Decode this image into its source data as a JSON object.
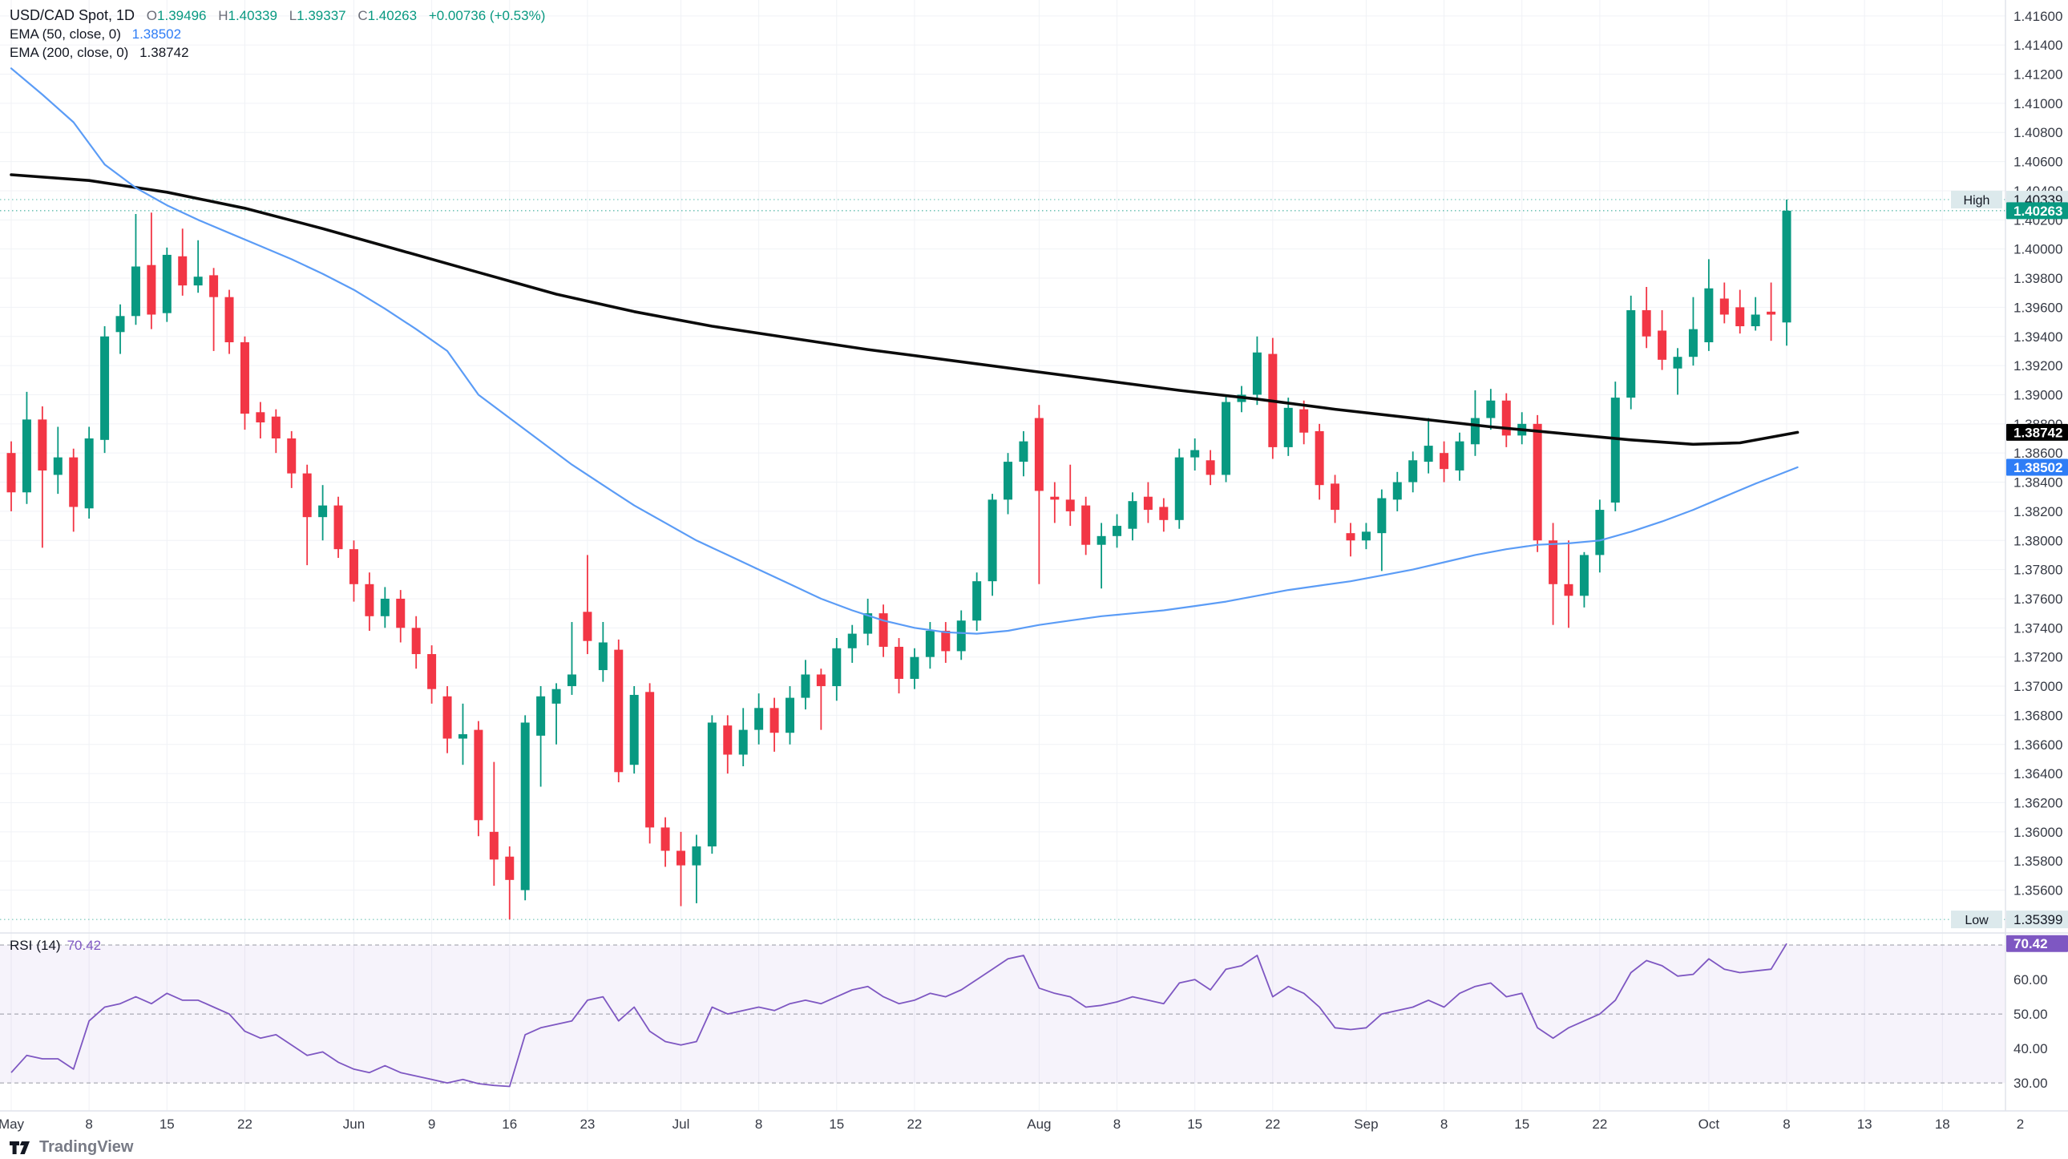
{
  "legend": {
    "symbol": "USD/CAD Spot, 1D",
    "o_label": "O",
    "o": "1.39496",
    "h_label": "H",
    "h": "1.40339",
    "l_label": "L",
    "l": "1.39337",
    "c_label": "C",
    "c": "1.40263",
    "change": "+0.00736 (+0.53%)",
    "ema50_label": "EMA (50, close, 0)",
    "ema50_value": "1.38502",
    "ema200_label": "EMA (200, close, 0)",
    "ema200_value": "1.38742"
  },
  "rsi_legend": {
    "label": "RSI",
    "params": "(14)",
    "value": "70.42"
  },
  "watermark": {
    "text": "TradingView"
  },
  "markers": {
    "high_label": "High",
    "high": "1.40339",
    "low_label": "Low",
    "low": "1.35399",
    "close": "1.40263",
    "ema50": "1.38502",
    "ema200": "1.38742",
    "rsi": "70.42"
  },
  "colors": {
    "up": "#089981",
    "down": "#f23645",
    "ema50_line": "#5b9cf6",
    "ema50_badge": "#2e7df6",
    "ema200_line": "#0b0b0b",
    "ema200_badge": "#000000",
    "rsi_line": "#7e57c2",
    "rsi_badge": "#7e57c2",
    "grid": "#f0f2f6",
    "axis_text": "#363a45",
    "separator": "#e0e3eb",
    "marker_bg": "#dce9ec",
    "dashed_level": "#787b86",
    "band_fill": "rgba(126,87,194,0.07)"
  },
  "chart_data": {
    "type": "candlestick",
    "title": "USD/CAD Spot, 1D — with EMA(50), EMA(200) and RSI(14)",
    "symbol": "USD/CAD Spot",
    "interval": "1D",
    "legend_ohlc": {
      "open": 1.39496,
      "high": 1.40339,
      "low": 1.39337,
      "close": 1.40263,
      "change": 0.00736,
      "change_pct": 0.53
    },
    "price_axis": {
      "min_label": 1.356,
      "max_label": 1.416,
      "step": 0.002,
      "ylim": [
        1.35317,
        1.41709
      ]
    },
    "rsi_axis": {
      "ticks": [
        60,
        50,
        40,
        30
      ],
      "dashed_levels": [
        70,
        50,
        30
      ],
      "ylim": [
        21.9,
        72.8
      ]
    },
    "high_marker": 1.40339,
    "low_marker": 1.35399,
    "last_close": 1.40263,
    "rsi_last": 70.42,
    "ema50_last": 1.38502,
    "ema200_last": 1.38742,
    "grid": true,
    "legend_position": "top-left",
    "dates": [
      "May 1",
      "May 2",
      "May 5",
      "May 6",
      "May 7",
      "May 8",
      "May 9",
      "May 12",
      "May 13",
      "May 14",
      "May 15",
      "May 16",
      "May 19",
      "May 20",
      "May 21",
      "May 22",
      "May 23",
      "May 26",
      "May 27",
      "May 28",
      "May 29",
      "May 30",
      "Jun 2",
      "Jun 3",
      "Jun 4",
      "Jun 5",
      "Jun 6",
      "Jun 9",
      "Jun 10",
      "Jun 11",
      "Jun 12",
      "Jun 13",
      "Jun 16",
      "Jun 17",
      "Jun 18",
      "Jun 19",
      "Jun 20",
      "Jun 23",
      "Jun 24",
      "Jun 25",
      "Jun 26",
      "Jun 27",
      "Jun 30",
      "Jul 1",
      "Jul 2",
      "Jul 3",
      "Jul 4",
      "Jul 7",
      "Jul 8",
      "Jul 9",
      "Jul 10",
      "Jul 11",
      "Jul 14",
      "Jul 15",
      "Jul 16",
      "Jul 17",
      "Jul 18",
      "Jul 21",
      "Jul 22",
      "Jul 23",
      "Jul 24",
      "Jul 25",
      "Jul 28",
      "Jul 29",
      "Jul 30",
      "Jul 31",
      "Aug 1",
      "Aug 4",
      "Aug 5",
      "Aug 6",
      "Aug 7",
      "Aug 8",
      "Aug 11",
      "Aug 12",
      "Aug 13",
      "Aug 14",
      "Aug 15",
      "Aug 18",
      "Aug 19",
      "Aug 20",
      "Aug 21",
      "Aug 22",
      "Aug 25",
      "Aug 26",
      "Aug 27",
      "Aug 28",
      "Aug 29",
      "Sep 1",
      "Sep 2",
      "Sep 3",
      "Sep 4",
      "Sep 5",
      "Sep 8",
      "Sep 9",
      "Sep 10",
      "Sep 11",
      "Sep 12",
      "Sep 15",
      "Sep 16",
      "Sep 17",
      "Sep 18",
      "Sep 19",
      "Sep 22",
      "Sep 23",
      "Sep 24",
      "Sep 25",
      "Sep 26",
      "Sep 29",
      "Sep 30",
      "Oct 1",
      "Oct 2",
      "Oct 3",
      "Oct 6",
      "Oct 7",
      "Oct 8"
    ],
    "ohlc": [
      [
        1.386,
        1.3868,
        1.382,
        1.3833
      ],
      [
        1.3833,
        1.3902,
        1.3825,
        1.3883
      ],
      [
        1.3883,
        1.3892,
        1.3795,
        1.3848
      ],
      [
        1.3845,
        1.3878,
        1.3832,
        1.3857
      ],
      [
        1.3857,
        1.3863,
        1.3806,
        1.3823
      ],
      [
        1.3822,
        1.3878,
        1.3815,
        1.387
      ],
      [
        1.3869,
        1.3947,
        1.386,
        1.394
      ],
      [
        1.3943,
        1.3962,
        1.3928,
        1.3954
      ],
      [
        1.3954,
        1.4024,
        1.3948,
        1.3988
      ],
      [
        1.3989,
        1.4025,
        1.3945,
        1.3955
      ],
      [
        1.3956,
        1.4001,
        1.395,
        1.3996
      ],
      [
        1.3995,
        1.4014,
        1.3968,
        1.3975
      ],
      [
        1.3975,
        1.4006,
        1.397,
        1.3981
      ],
      [
        1.3982,
        1.3987,
        1.393,
        1.3967
      ],
      [
        1.3967,
        1.3972,
        1.3928,
        1.3936
      ],
      [
        1.3936,
        1.394,
        1.3876,
        1.3887
      ],
      [
        1.3888,
        1.3895,
        1.387,
        1.3881
      ],
      [
        1.3885,
        1.389,
        1.386,
        1.387
      ],
      [
        1.387,
        1.3875,
        1.3836,
        1.3846
      ],
      [
        1.3846,
        1.3852,
        1.3783,
        1.3816
      ],
      [
        1.3816,
        1.3838,
        1.38,
        1.3824
      ],
      [
        1.3824,
        1.383,
        1.3788,
        1.3794
      ],
      [
        1.3794,
        1.38,
        1.3758,
        1.377
      ],
      [
        1.377,
        1.3778,
        1.3738,
        1.3748
      ],
      [
        1.3748,
        1.3768,
        1.374,
        1.376
      ],
      [
        1.376,
        1.3766,
        1.373,
        1.374
      ],
      [
        1.374,
        1.3748,
        1.3712,
        1.3722
      ],
      [
        1.3722,
        1.3728,
        1.3688,
        1.3698
      ],
      [
        1.3693,
        1.37,
        1.3654,
        1.3664
      ],
      [
        1.3664,
        1.3688,
        1.3646,
        1.3667
      ],
      [
        1.367,
        1.3676,
        1.3597,
        1.3608
      ],
      [
        1.36,
        1.3648,
        1.3563,
        1.3581
      ],
      [
        1.3583,
        1.359,
        1.35399,
        1.3567
      ],
      [
        1.356,
        1.368,
        1.3553,
        1.3675
      ],
      [
        1.3666,
        1.37,
        1.3631,
        1.3693
      ],
      [
        1.3688,
        1.3702,
        1.366,
        1.3698
      ],
      [
        1.37,
        1.3744,
        1.3694,
        1.3708
      ],
      [
        1.3751,
        1.379,
        1.3722,
        1.3731
      ],
      [
        1.3711,
        1.3744,
        1.3703,
        1.373
      ],
      [
        1.3725,
        1.3732,
        1.3634,
        1.3641
      ],
      [
        1.3646,
        1.37,
        1.364,
        1.3694
      ],
      [
        1.3696,
        1.3702,
        1.3592,
        1.3603
      ],
      [
        1.3603,
        1.361,
        1.3576,
        1.3587
      ],
      [
        1.3587,
        1.36,
        1.3549,
        1.3577
      ],
      [
        1.3577,
        1.3598,
        1.3551,
        1.359
      ],
      [
        1.359,
        1.368,
        1.3585,
        1.3675
      ],
      [
        1.3673,
        1.368,
        1.364,
        1.3653
      ],
      [
        1.3653,
        1.3685,
        1.3645,
        1.367
      ],
      [
        1.367,
        1.3695,
        1.366,
        1.3685
      ],
      [
        1.3685,
        1.3692,
        1.3655,
        1.3668
      ],
      [
        1.3668,
        1.37,
        1.366,
        1.3692
      ],
      [
        1.3692,
        1.3718,
        1.3684,
        1.3708
      ],
      [
        1.3708,
        1.3712,
        1.367,
        1.37
      ],
      [
        1.37,
        1.3733,
        1.369,
        1.3726
      ],
      [
        1.3726,
        1.3742,
        1.3716,
        1.3736
      ],
      [
        1.3736,
        1.376,
        1.3728,
        1.375
      ],
      [
        1.375,
        1.3756,
        1.372,
        1.3727
      ],
      [
        1.3727,
        1.3733,
        1.3695,
        1.3705
      ],
      [
        1.3705,
        1.3726,
        1.3698,
        1.372
      ],
      [
        1.372,
        1.3744,
        1.3712,
        1.3738
      ],
      [
        1.3738,
        1.3744,
        1.3716,
        1.3724
      ],
      [
        1.3724,
        1.3752,
        1.3718,
        1.3745
      ],
      [
        1.3745,
        1.3778,
        1.3738,
        1.3772
      ],
      [
        1.3772,
        1.3832,
        1.3762,
        1.3828
      ],
      [
        1.3828,
        1.386,
        1.3818,
        1.3854
      ],
      [
        1.3854,
        1.3875,
        1.3844,
        1.3868
      ],
      [
        1.3884,
        1.3893,
        1.377,
        1.3834
      ],
      [
        1.383,
        1.384,
        1.3812,
        1.3828
      ],
      [
        1.3828,
        1.3852,
        1.381,
        1.382
      ],
      [
        1.3824,
        1.383,
        1.379,
        1.3797
      ],
      [
        1.3797,
        1.3812,
        1.3767,
        1.3803
      ],
      [
        1.3803,
        1.3818,
        1.3795,
        1.381
      ],
      [
        1.3808,
        1.3833,
        1.38,
        1.3827
      ],
      [
        1.383,
        1.384,
        1.3812,
        1.3821
      ],
      [
        1.3823,
        1.3829,
        1.3806,
        1.3814
      ],
      [
        1.3814,
        1.3863,
        1.3808,
        1.3857
      ],
      [
        1.3857,
        1.387,
        1.3848,
        1.3862
      ],
      [
        1.3855,
        1.3862,
        1.3838,
        1.3845
      ],
      [
        1.3845,
        1.39,
        1.384,
        1.3895
      ],
      [
        1.3895,
        1.3906,
        1.3888,
        1.39
      ],
      [
        1.39,
        1.394,
        1.3893,
        1.3929
      ],
      [
        1.3928,
        1.3939,
        1.3856,
        1.3864
      ],
      [
        1.3864,
        1.3898,
        1.3858,
        1.3891
      ],
      [
        1.389,
        1.3896,
        1.3866,
        1.3874
      ],
      [
        1.3875,
        1.388,
        1.3828,
        1.3838
      ],
      [
        1.3839,
        1.3845,
        1.3812,
        1.3821
      ],
      [
        1.3805,
        1.3812,
        1.3789,
        1.38
      ],
      [
        1.38,
        1.3812,
        1.3794,
        1.3806
      ],
      [
        1.3805,
        1.3835,
        1.3779,
        1.3829
      ],
      [
        1.3828,
        1.3847,
        1.382,
        1.384
      ],
      [
        1.384,
        1.3861,
        1.3833,
        1.3855
      ],
      [
        1.3854,
        1.3884,
        1.3846,
        1.3865
      ],
      [
        1.386,
        1.3868,
        1.384,
        1.3849
      ],
      [
        1.3848,
        1.3874,
        1.3841,
        1.3868
      ],
      [
        1.3866,
        1.3903,
        1.3858,
        1.3884
      ],
      [
        1.3884,
        1.3904,
        1.3876,
        1.3896
      ],
      [
        1.3896,
        1.3901,
        1.3864,
        1.3872
      ],
      [
        1.3872,
        1.3888,
        1.3866,
        1.388
      ],
      [
        1.388,
        1.3886,
        1.3792,
        1.38
      ],
      [
        1.38,
        1.3812,
        1.3742,
        1.377
      ],
      [
        1.377,
        1.38,
        1.374,
        1.3762
      ],
      [
        1.3762,
        1.3792,
        1.3754,
        1.379
      ],
      [
        1.379,
        1.3828,
        1.3778,
        1.3821
      ],
      [
        1.3826,
        1.3909,
        1.382,
        1.3898
      ],
      [
        1.3898,
        1.3968,
        1.389,
        1.3958
      ],
      [
        1.3958,
        1.3974,
        1.3932,
        1.394
      ],
      [
        1.3944,
        1.3958,
        1.3917,
        1.3924
      ],
      [
        1.3918,
        1.3932,
        1.39,
        1.3926
      ],
      [
        1.3926,
        1.3967,
        1.392,
        1.3945
      ],
      [
        1.3936,
        1.3993,
        1.393,
        1.3973
      ],
      [
        1.3966,
        1.3977,
        1.3949,
        1.3955
      ],
      [
        1.396,
        1.3972,
        1.3942,
        1.3947
      ],
      [
        1.3947,
        1.3967,
        1.3944,
        1.3955
      ],
      [
        1.3957,
        1.3977,
        1.3937,
        1.3955
      ],
      [
        1.39496,
        1.40339,
        1.39337,
        1.40263
      ]
    ],
    "rsi": [
      33,
      38,
      37,
      37,
      34,
      48,
      52,
      53,
      55,
      53,
      56,
      54,
      54,
      52,
      50,
      45,
      43,
      44,
      41,
      38,
      39,
      36,
      34,
      33,
      35,
      33,
      32,
      31,
      30,
      31,
      29.8,
      29.3,
      29,
      44,
      46,
      47,
      48,
      54,
      55,
      48,
      52,
      45,
      42,
      41,
      42,
      52,
      50,
      51,
      52,
      51,
      53,
      54,
      53,
      55,
      57,
      58,
      55,
      53,
      54,
      56,
      55,
      57,
      60,
      63,
      66,
      67,
      57.5,
      56,
      55,
      52,
      52.5,
      53.5,
      55,
      54,
      53,
      59,
      60,
      57,
      63,
      64,
      67,
      55,
      58,
      56,
      52,
      46,
      45.5,
      46,
      50,
      51,
      52,
      54,
      52,
      56,
      58,
      59,
      55,
      56,
      46,
      43,
      46,
      48,
      50,
      54,
      62,
      65.5,
      64,
      61,
      61.5,
      66,
      63,
      62,
      62.5,
      63,
      70.42
    ],
    "ema50_points": [
      [
        0,
        1.4124
      ],
      [
        2,
        1.4106
      ],
      [
        4,
        1.4087
      ],
      [
        6,
        1.4058
      ],
      [
        8,
        1.4042
      ],
      [
        10,
        1.403
      ],
      [
        12,
        1.402
      ],
      [
        14,
        1.4011
      ],
      [
        16,
        1.4002
      ],
      [
        18,
        1.3993
      ],
      [
        20,
        1.3983
      ],
      [
        22,
        1.3972
      ],
      [
        24,
        1.3959
      ],
      [
        26,
        1.3945
      ],
      [
        28,
        1.393
      ],
      [
        30,
        1.39
      ],
      [
        32,
        1.3884
      ],
      [
        34,
        1.3868
      ],
      [
        36,
        1.3852
      ],
      [
        38,
        1.3838
      ],
      [
        40,
        1.3824
      ],
      [
        42,
        1.3812
      ],
      [
        44,
        1.38
      ],
      [
        46,
        1.379
      ],
      [
        48,
        1.378
      ],
      [
        50,
        1.377
      ],
      [
        52,
        1.376
      ],
      [
        54,
        1.3752
      ],
      [
        56,
        1.3745
      ],
      [
        58,
        1.374
      ],
      [
        60,
        1.3737
      ],
      [
        62,
        1.3736
      ],
      [
        64,
        1.3738
      ],
      [
        66,
        1.3742
      ],
      [
        68,
        1.3745
      ],
      [
        70,
        1.3748
      ],
      [
        72,
        1.375
      ],
      [
        74,
        1.3752
      ],
      [
        76,
        1.3755
      ],
      [
        78,
        1.3758
      ],
      [
        80,
        1.3762
      ],
      [
        82,
        1.3766
      ],
      [
        84,
        1.3769
      ],
      [
        86,
        1.3772
      ],
      [
        88,
        1.3776
      ],
      [
        90,
        1.378
      ],
      [
        92,
        1.3785
      ],
      [
        94,
        1.379
      ],
      [
        96,
        1.3794
      ],
      [
        98,
        1.3797
      ],
      [
        100,
        1.3798
      ],
      [
        102,
        1.38
      ],
      [
        104,
        1.3806
      ],
      [
        106,
        1.3813
      ],
      [
        108,
        1.3821
      ],
      [
        110,
        1.383
      ],
      [
        112,
        1.3839
      ],
      [
        114.7,
        1.38502
      ]
    ],
    "ema200_points": [
      [
        0,
        1.4051
      ],
      [
        5,
        1.4047
      ],
      [
        10,
        1.4039
      ],
      [
        15,
        1.4028
      ],
      [
        20,
        1.4014
      ],
      [
        25,
        1.3999
      ],
      [
        30,
        1.3984
      ],
      [
        35,
        1.3969
      ],
      [
        40,
        1.3957
      ],
      [
        45,
        1.3947
      ],
      [
        50,
        1.3939
      ],
      [
        55,
        1.3931
      ],
      [
        60,
        1.3924
      ],
      [
        65,
        1.3917
      ],
      [
        70,
        1.391
      ],
      [
        75,
        1.3903
      ],
      [
        80,
        1.3897
      ],
      [
        85,
        1.389
      ],
      [
        90,
        1.3884
      ],
      [
        95,
        1.3878
      ],
      [
        100,
        1.3873
      ],
      [
        104,
        1.3869
      ],
      [
        108,
        1.3866
      ],
      [
        111,
        1.3867
      ],
      [
        114.7,
        1.38742
      ]
    ],
    "time_labels": [
      [
        "May",
        0
      ],
      [
        "8",
        5
      ],
      [
        "15",
        10
      ],
      [
        "22",
        15
      ],
      [
        "Jun",
        22
      ],
      [
        "9",
        27
      ],
      [
        "16",
        32
      ],
      [
        "23",
        37
      ],
      [
        "Jul",
        43
      ],
      [
        "8",
        48
      ],
      [
        "15",
        53
      ],
      [
        "22",
        58
      ],
      [
        "Aug",
        66
      ],
      [
        "8",
        71
      ],
      [
        "15",
        76
      ],
      [
        "22",
        81
      ],
      [
        "Sep",
        87
      ],
      [
        "8",
        92
      ],
      [
        "15",
        97
      ],
      [
        "22",
        102
      ],
      [
        "Oct",
        109
      ],
      [
        "8",
        114
      ],
      [
        "13",
        119
      ],
      [
        "18",
        124
      ],
      [
        "2",
        129
      ]
    ]
  }
}
